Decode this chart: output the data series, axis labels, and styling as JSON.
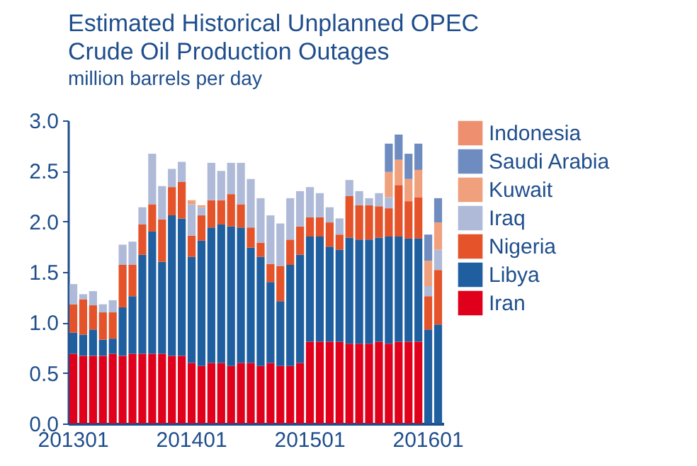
{
  "chart_data": {
    "type": "bar",
    "stacked": true,
    "title": [
      "Estimated Historical Unplanned OPEC",
      "Crude Oil Production Outages"
    ],
    "subtitle": "million barrels per day",
    "categories": [
      "201301",
      null,
      null,
      null,
      null,
      null,
      null,
      null,
      null,
      null,
      null,
      null,
      "201401",
      null,
      null,
      null,
      null,
      null,
      null,
      null,
      null,
      null,
      null,
      null,
      "201501",
      null,
      null,
      null,
      null,
      null,
      null,
      null,
      null,
      null,
      null,
      null,
      "201601",
      null
    ],
    "ylim": [
      0,
      3
    ],
    "yticks": [
      {
        "value": 0,
        "label": "0.0"
      },
      0.5,
      {
        "value": 1,
        "label": "1.0"
      },
      1.5,
      {
        "value": 2,
        "label": "2.0"
      },
      2.5,
      {
        "value": 3,
        "label": "3.0"
      }
    ],
    "grid": false,
    "legend": "right",
    "series": [
      {
        "name": "Iran",
        "color": "#e0001b",
        "values": [
          0.69,
          0.67,
          0.67,
          0.67,
          0.69,
          0.67,
          0.69,
          0.69,
          0.69,
          0.69,
          0.67,
          0.67,
          0.6,
          0.57,
          0.6,
          0.6,
          0.57,
          0.6,
          0.6,
          0.57,
          0.6,
          0.57,
          0.57,
          0.6,
          0.81,
          0.81,
          0.81,
          0.81,
          0.79,
          0.79,
          0.79,
          0.81,
          0.79,
          0.81,
          0.81,
          0.81,
          null,
          null
        ]
      },
      {
        "name": "Libya",
        "color": "#1f5fa0",
        "values": [
          0.21,
          0.21,
          0.26,
          0.16,
          0.15,
          0.48,
          0.57,
          0.98,
          1.21,
          0.91,
          1.39,
          1.36,
          1.05,
          1.24,
          1.34,
          1.37,
          1.38,
          1.34,
          1.14,
          1.08,
          0.8,
          0.64,
          1.0,
          1.07,
          1.04,
          1.04,
          0.94,
          0.91,
          1.05,
          1.03,
          1.03,
          1.03,
          1.06,
          1.04,
          1.02,
          1.02,
          0.93,
          0.98
        ]
      },
      {
        "name": "Nigeria",
        "color": "#e4532a",
        "values": [
          0.28,
          0.35,
          0.24,
          0.27,
          0.26,
          0.42,
          0.31,
          0.3,
          0.27,
          0.42,
          0.28,
          0.36,
          0.21,
          0.25,
          0.27,
          0.24,
          0.32,
          0.23,
          0.2,
          0.14,
          0.18,
          0.35,
          0.25,
          0.28,
          0.19,
          0.19,
          0.24,
          0.15,
          0.41,
          0.34,
          0.34,
          0.31,
          0.28,
          0.51,
          0.37,
          0.41,
          0.33,
          0.54
        ]
      },
      {
        "name": "Iraq",
        "color": "#aebad8",
        "values": [
          0.2,
          0.05,
          0.14,
          0.08,
          0.12,
          0.2,
          0.23,
          0.17,
          0.5,
          0.33,
          0.18,
          0.2,
          0.31,
          0.08,
          0.37,
          0.29,
          0.31,
          0.41,
          0.48,
          0.44,
          0.48,
          0.42,
          0.41,
          0.35,
          0.3,
          0.24,
          0.15,
          0.16,
          0.16,
          0.14,
          0.07,
          0.13,
          0.11,
          null,
          null,
          null,
          0.1,
          0.2
        ]
      },
      {
        "name": "Kuwait",
        "color": "#f0a07c",
        "values": [
          null,
          null,
          null,
          null,
          null,
          null,
          null,
          null,
          null,
          null,
          null,
          null,
          0.04,
          0.02,
          null,
          null,
          null,
          null,
          null,
          null,
          null,
          null,
          null,
          null,
          null,
          null,
          null,
          null,
          null,
          null,
          null,
          null,
          0.25,
          0.25,
          0.22,
          0.27,
          0.25,
          0.27
        ]
      },
      {
        "name": "Saudi Arabia",
        "color": "#6f8cc0",
        "values": [
          null,
          null,
          null,
          null,
          null,
          null,
          null,
          null,
          null,
          null,
          null,
          null,
          null,
          null,
          null,
          null,
          null,
          null,
          null,
          null,
          null,
          null,
          null,
          null,
          null,
          null,
          null,
          null,
          null,
          null,
          null,
          null,
          0.28,
          0.25,
          0.25,
          0.26,
          0.26,
          0.24
        ]
      },
      {
        "name": "Indonesia",
        "color": "#ee9070",
        "values": [
          null,
          null,
          null,
          null,
          null,
          null,
          null,
          null,
          null,
          null,
          null,
          null,
          null,
          null,
          null,
          null,
          null,
          null,
          null,
          null,
          null,
          null,
          null,
          null,
          null,
          null,
          null,
          null,
          null,
          null,
          null,
          null,
          null,
          null,
          null,
          null,
          null,
          null
        ]
      }
    ]
  }
}
